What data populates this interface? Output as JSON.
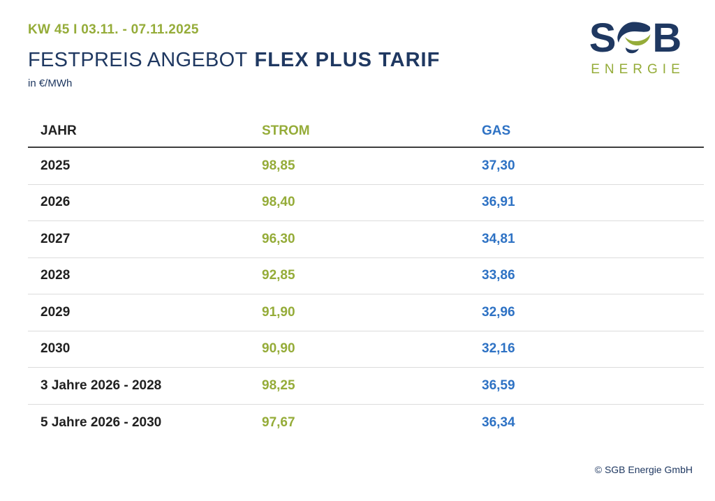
{
  "header": {
    "kicker": "KW 45 I 03.11. - 07.11.2025",
    "title_regular": "FESTPREIS ANGEBOT",
    "title_bold": "FLEX PLUS TARIF",
    "unit": "in €/MWh"
  },
  "logo": {
    "word_start": "S",
    "word_end": "B",
    "g_icon": "stylized-g-swoosh-icon",
    "subtitle": "ENERGIE"
  },
  "colors": {
    "green": "#95ac39",
    "blue": "#2e72c4",
    "navy": "#1f3861",
    "dark": "#212121",
    "header_rule": "#3d3d3d",
    "row_rule": "#dcdcdc"
  },
  "table": {
    "columns": [
      {
        "label": "JAHR",
        "color": "dark"
      },
      {
        "label": "STROM",
        "color": "green"
      },
      {
        "label": "GAS",
        "color": "blue"
      }
    ],
    "rows": [
      {
        "jahr": "2025",
        "strom": "98,85",
        "gas": "37,30"
      },
      {
        "jahr": "2026",
        "strom": "98,40",
        "gas": "36,91"
      },
      {
        "jahr": "2027",
        "strom": "96,30",
        "gas": "34,81"
      },
      {
        "jahr": "2028",
        "strom": "92,85",
        "gas": "33,86"
      },
      {
        "jahr": "2029",
        "strom": "91,90",
        "gas": "32,96"
      },
      {
        "jahr": "2030",
        "strom": "90,90",
        "gas": "32,16"
      },
      {
        "jahr": "3 Jahre 2026 - 2028",
        "strom": "98,25",
        "gas": "36,59"
      },
      {
        "jahr": "5 Jahre 2026 - 2030",
        "strom": "97,67",
        "gas": "36,34"
      }
    ]
  },
  "footer": {
    "copyright": "© SGB Energie GmbH"
  }
}
